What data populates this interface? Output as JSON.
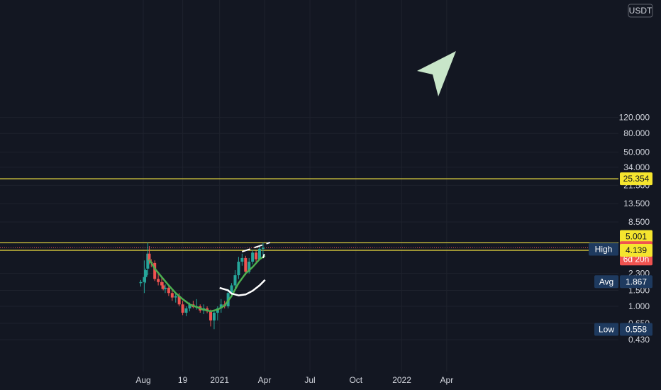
{
  "chart_data": {
    "type": "candlestick",
    "currency_label": "USDT",
    "y_scale": "log",
    "y_ticks": [
      "120.000",
      "80.000",
      "50.000",
      "34.000",
      "21.500",
      "13.500",
      "8.500",
      "2.300",
      "1.500",
      "1.000",
      "0.650",
      "0.430"
    ],
    "x_ticks": [
      {
        "label": "Aug",
        "date": "2020-08-01"
      },
      {
        "label": "19",
        "date": "2020-10-19"
      },
      {
        "label": "2021",
        "date": "2021-01-01"
      },
      {
        "label": "Apr",
        "date": "2021-04-01"
      },
      {
        "label": "Jul",
        "date": "2021-07-01"
      },
      {
        "label": "Oct",
        "date": "2021-10-01"
      },
      {
        "label": "2022",
        "date": "2022-01-01"
      },
      {
        "label": "Apr",
        "date": "2022-04-01"
      }
    ],
    "candles": [
      {
        "t": "2020-07-27",
        "o": 1.8,
        "h": 1.95,
        "l": 1.65,
        "c": 1.85
      },
      {
        "t": "2020-08-03",
        "o": 1.85,
        "h": 3.2,
        "l": 1.4,
        "c": 2.1
      },
      {
        "t": "2020-08-06",
        "o": 2.1,
        "h": 2.6,
        "l": 1.8,
        "c": 2.5
      },
      {
        "t": "2020-08-10",
        "o": 2.6,
        "h": 5.0,
        "l": 2.2,
        "c": 3.8
      },
      {
        "t": "2020-08-13",
        "o": 3.8,
        "h": 4.6,
        "l": 2.9,
        "c": 3.2
      },
      {
        "t": "2020-08-17",
        "o": 3.1,
        "h": 3.3,
        "l": 2.7,
        "c": 3.0
      },
      {
        "t": "2020-08-24",
        "o": 3.0,
        "h": 3.2,
        "l": 1.9,
        "c": 2.0
      },
      {
        "t": "2020-08-31",
        "o": 2.0,
        "h": 2.4,
        "l": 1.7,
        "c": 1.85
      },
      {
        "t": "2020-09-07",
        "o": 1.85,
        "h": 2.1,
        "l": 1.55,
        "c": 1.7
      },
      {
        "t": "2020-09-10",
        "o": 1.7,
        "h": 1.85,
        "l": 1.5,
        "c": 1.55
      },
      {
        "t": "2020-09-14",
        "o": 1.55,
        "h": 1.75,
        "l": 1.4,
        "c": 1.6
      },
      {
        "t": "2020-09-21",
        "o": 1.6,
        "h": 1.7,
        "l": 1.3,
        "c": 1.4
      },
      {
        "t": "2020-09-28",
        "o": 1.4,
        "h": 1.55,
        "l": 1.15,
        "c": 1.25
      },
      {
        "t": "2020-10-05",
        "o": 1.25,
        "h": 1.4,
        "l": 1.1,
        "c": 1.3
      },
      {
        "t": "2020-10-12",
        "o": 1.3,
        "h": 1.4,
        "l": 1.0,
        "c": 1.05
      },
      {
        "t": "2020-10-19",
        "o": 1.05,
        "h": 1.15,
        "l": 0.8,
        "c": 0.85
      },
      {
        "t": "2020-10-26",
        "o": 0.85,
        "h": 1.0,
        "l": 0.78,
        "c": 0.95
      },
      {
        "t": "2020-11-02",
        "o": 0.95,
        "h": 1.1,
        "l": 0.88,
        "c": 1.05
      },
      {
        "t": "2020-11-09",
        "o": 1.05,
        "h": 1.15,
        "l": 0.95,
        "c": 0.98
      },
      {
        "t": "2020-11-16",
        "o": 0.98,
        "h": 1.2,
        "l": 0.92,
        "c": 1.0
      },
      {
        "t": "2020-11-23",
        "o": 1.0,
        "h": 1.05,
        "l": 0.85,
        "c": 0.9
      },
      {
        "t": "2020-11-30",
        "o": 0.9,
        "h": 1.05,
        "l": 0.82,
        "c": 0.95
      },
      {
        "t": "2020-12-07",
        "o": 0.95,
        "h": 1.0,
        "l": 0.84,
        "c": 0.88
      },
      {
        "t": "2020-12-14",
        "o": 0.88,
        "h": 0.92,
        "l": 0.6,
        "c": 0.7
      },
      {
        "t": "2020-12-21",
        "o": 0.7,
        "h": 0.9,
        "l": 0.56,
        "c": 0.85
      },
      {
        "t": "2020-12-28",
        "o": 0.85,
        "h": 1.0,
        "l": 0.7,
        "c": 0.95
      },
      {
        "t": "2021-01-04",
        "o": 0.95,
        "h": 1.2,
        "l": 0.85,
        "c": 1.05
      },
      {
        "t": "2021-01-11",
        "o": 1.05,
        "h": 1.15,
        "l": 0.95,
        "c": 1.0
      },
      {
        "t": "2021-01-18",
        "o": 1.0,
        "h": 1.55,
        "l": 0.95,
        "c": 1.4
      },
      {
        "t": "2021-01-25",
        "o": 1.4,
        "h": 1.8,
        "l": 1.3,
        "c": 1.7
      },
      {
        "t": "2021-02-01",
        "o": 1.7,
        "h": 2.5,
        "l": 1.55,
        "c": 2.2
      },
      {
        "t": "2021-02-08",
        "o": 2.2,
        "h": 3.5,
        "l": 2.0,
        "c": 3.1
      },
      {
        "t": "2021-02-15",
        "o": 3.1,
        "h": 3.8,
        "l": 2.8,
        "c": 3.4
      },
      {
        "t": "2021-02-22",
        "o": 3.4,
        "h": 3.6,
        "l": 2.2,
        "c": 2.4
      },
      {
        "t": "2021-03-01",
        "o": 2.4,
        "h": 3.4,
        "l": 2.3,
        "c": 3.1
      },
      {
        "t": "2021-03-08",
        "o": 3.1,
        "h": 4.2,
        "l": 2.9,
        "c": 3.9
      },
      {
        "t": "2021-03-15",
        "o": 3.9,
        "h": 4.1,
        "l": 3.1,
        "c": 3.3
      },
      {
        "t": "2021-03-22",
        "o": 3.3,
        "h": 4.6,
        "l": 3.2,
        "c": 4.3
      },
      {
        "t": "2021-03-29",
        "o": 4.3,
        "h": 5.0,
        "l": 3.6,
        "c": 4.42
      }
    ],
    "green_ma": [
      {
        "t": "2020-08-13",
        "v": 3.3
      },
      {
        "t": "2020-08-24",
        "v": 2.6
      },
      {
        "t": "2020-09-07",
        "v": 2.1
      },
      {
        "t": "2020-09-21",
        "v": 1.7
      },
      {
        "t": "2020-10-05",
        "v": 1.4
      },
      {
        "t": "2020-10-19",
        "v": 1.2
      },
      {
        "t": "2020-11-02",
        "v": 1.05
      },
      {
        "t": "2020-11-16",
        "v": 0.98
      },
      {
        "t": "2020-11-30",
        "v": 0.92
      },
      {
        "t": "2020-12-14",
        "v": 0.88
      },
      {
        "t": "2020-12-28",
        "v": 0.92
      },
      {
        "t": "2021-01-11",
        "v": 1.02
      },
      {
        "t": "2021-01-25",
        "v": 1.3
      },
      {
        "t": "2021-02-08",
        "v": 1.8
      },
      {
        "t": "2021-02-22",
        "v": 2.3
      },
      {
        "t": "2021-03-08",
        "v": 2.7
      },
      {
        "t": "2021-03-22",
        "v": 3.3
      },
      {
        "t": "2021-04-02",
        "v": 3.6
      }
    ],
    "white_curve": [
      {
        "t": "2021-01-01",
        "v": 1.6
      },
      {
        "t": "2021-01-18",
        "v": 1.5
      },
      {
        "t": "2021-01-25",
        "v": 1.38
      },
      {
        "t": "2021-02-08",
        "v": 1.32
      },
      {
        "t": "2021-02-22",
        "v": 1.35
      },
      {
        "t": "2021-03-08",
        "v": 1.48
      },
      {
        "t": "2021-03-22",
        "v": 1.7
      },
      {
        "t": "2021-04-02",
        "v": 1.95
      }
    ],
    "dashed_top": [
      {
        "t": "2021-02-15",
        "v": 4.0
      },
      {
        "t": "2021-04-12",
        "v": 5.05
      }
    ],
    "dashed_right": [
      {
        "t": "2021-03-29",
        "v": 3.4
      },
      {
        "t": "2021-04-02",
        "v": 4.0
      }
    ],
    "horizontal_lines": [
      {
        "price": 25.354,
        "color": "#f0e040"
      },
      {
        "price": 5.001,
        "color": "#f0e040"
      },
      {
        "price": 4.139,
        "color": "#f0e040"
      }
    ],
    "price_tags": [
      {
        "label": "25.354",
        "price": 25.354,
        "bg": "#f5e52e",
        "fg": "#131722"
      },
      {
        "label": "5.001",
        "price": 5.001,
        "bg": "#f5e52e",
        "fg": "#131722",
        "nudge": -1
      },
      {
        "label": "5.000",
        "price": 5.0,
        "bg": "#1e3a5f",
        "fg": "#ffffff",
        "side": "High",
        "nudge": 1
      },
      {
        "label": "4.422",
        "sub": "6d 20h",
        "price": 4.422,
        "bg": "#f05350",
        "fg": "#ffffff"
      },
      {
        "label": "4.139",
        "price": 4.139,
        "bg": "#f5e52e",
        "fg": "#131722"
      },
      {
        "label": "1.867",
        "price": 1.867,
        "bg": "#1e3a5f",
        "fg": "#ffffff",
        "side": "Avg"
      },
      {
        "label": "0.558",
        "price": 0.558,
        "bg": "#1e3a5f",
        "fg": "#ffffff",
        "side": "Low"
      }
    ],
    "arrow_color": "#c8e6c9",
    "up_color": "#26a69a",
    "down_color": "#ef5350",
    "ma_color": "#4caf50",
    "curve_color": "#ffffff",
    "grid": true
  }
}
